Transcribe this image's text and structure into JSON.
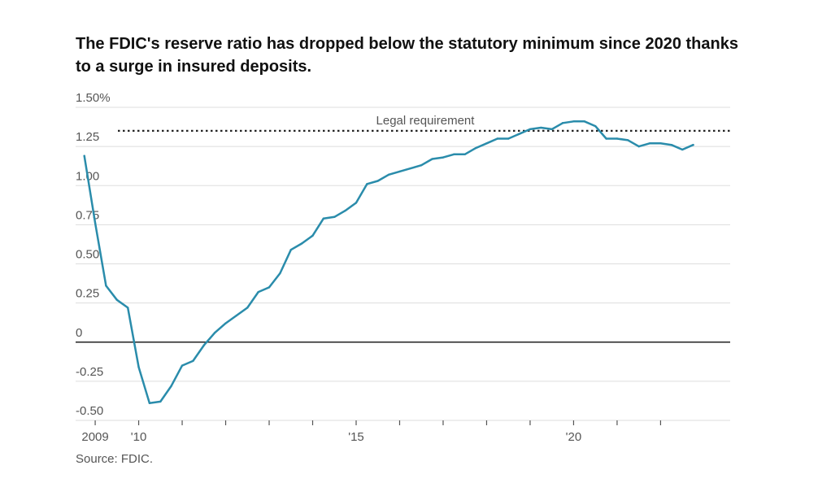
{
  "chart_data": {
    "type": "line",
    "title": "The FDIC's reserve ratio has dropped below the statutory minimum since 2020 thanks to a surge in insured deposits.",
    "source": "Source: FDIC.",
    "xlabel": "",
    "ylabel": "",
    "ylim": [
      -0.5,
      1.5
    ],
    "xlim": [
      2008.55,
      2023.6
    ],
    "y_ticks": [
      {
        "value": 1.5,
        "label": "1.50%"
      },
      {
        "value": 1.25,
        "label": "1.25"
      },
      {
        "value": 1.0,
        "label": "1.00"
      },
      {
        "value": 0.75,
        "label": "0.75"
      },
      {
        "value": 0.5,
        "label": "0.50"
      },
      {
        "value": 0.25,
        "label": "0.25"
      },
      {
        "value": 0,
        "label": "0"
      },
      {
        "value": -0.25,
        "label": "-0.25"
      },
      {
        "value": -0.5,
        "label": "-0.50"
      }
    ],
    "x_ticks": [
      2009,
      2010,
      2011,
      2012,
      2013,
      2014,
      2015,
      2016,
      2017,
      2018,
      2019,
      2020,
      2021,
      2022
    ],
    "x_tick_labels": [
      {
        "value": 2009,
        "label": "2009"
      },
      {
        "value": 2010,
        "label": "'10"
      },
      {
        "value": 2015,
        "label": "'15"
      },
      {
        "value": 2020,
        "label": "'20"
      }
    ],
    "reference_line": {
      "value": 1.35,
      "label": "Legal requirement"
    },
    "grid": true,
    "series_color": "#2a8cab",
    "series": [
      {
        "x": [
          2008.75,
          2009.0,
          2009.25,
          2009.5,
          2009.75,
          2010.0,
          2010.25,
          2010.5,
          2010.75,
          2011.0,
          2011.25,
          2011.5,
          2011.75,
          2012.0,
          2012.25,
          2012.5,
          2012.75,
          2013.0,
          2013.25,
          2013.5,
          2013.75,
          2014.0,
          2014.25,
          2014.5,
          2014.75,
          2015.0,
          2015.25,
          2015.5,
          2015.75,
          2016.0,
          2016.25,
          2016.5,
          2016.75,
          2017.0,
          2017.25,
          2017.5,
          2017.75,
          2018.0,
          2018.25,
          2018.5,
          2018.75,
          2019.0,
          2019.25,
          2019.5,
          2019.75,
          2020.0,
          2020.25,
          2020.5,
          2020.75,
          2021.0,
          2021.25,
          2021.5,
          2021.75,
          2022.0,
          2022.25,
          2022.5,
          2022.75
        ],
        "y": [
          1.19,
          0.76,
          0.36,
          0.27,
          0.22,
          -0.16,
          -0.39,
          -0.38,
          -0.28,
          -0.15,
          -0.12,
          -0.02,
          0.06,
          0.12,
          0.17,
          0.22,
          0.32,
          0.35,
          0.44,
          0.59,
          0.63,
          0.68,
          0.79,
          0.8,
          0.84,
          0.89,
          1.01,
          1.03,
          1.07,
          1.09,
          1.11,
          1.13,
          1.17,
          1.18,
          1.2,
          1.2,
          1.24,
          1.27,
          1.3,
          1.3,
          1.33,
          1.36,
          1.37,
          1.36,
          1.4,
          1.41,
          1.41,
          1.38,
          1.3,
          1.3,
          1.29,
          1.25,
          1.27,
          1.27,
          1.26,
          1.23,
          1.26
        ]
      }
    ]
  }
}
